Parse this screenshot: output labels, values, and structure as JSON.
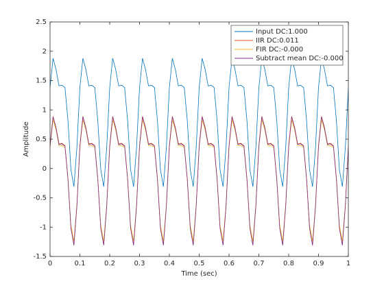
{
  "chart_data": {
    "type": "line",
    "xlabel": "Time (sec)",
    "ylabel": "Amplitude",
    "x": [
      0,
      0.01,
      0.02,
      0.03,
      0.04,
      0.05,
      0.06,
      0.07,
      0.08,
      0.09,
      0.1,
      0.11,
      0.12,
      0.13,
      0.14,
      0.15,
      0.16,
      0.17,
      0.18,
      0.19,
      0.2,
      0.21,
      0.22,
      0.23,
      0.24,
      0.25,
      0.26,
      0.27,
      0.28,
      0.29,
      0.3,
      0.31,
      0.32,
      0.33,
      0.34,
      0.35,
      0.36,
      0.37,
      0.38,
      0.39,
      0.4,
      0.41,
      0.42,
      0.43,
      0.44,
      0.45,
      0.46,
      0.47,
      0.48,
      0.49,
      0.5,
      0.51,
      0.52,
      0.53,
      0.54,
      0.55,
      0.56,
      0.57,
      0.58,
      0.59,
      0.6,
      0.61,
      0.62,
      0.63,
      0.64,
      0.65,
      0.66,
      0.67,
      0.68,
      0.69,
      0.7,
      0.71,
      0.72,
      0.73,
      0.74,
      0.75,
      0.76,
      0.77,
      0.78,
      0.79,
      0.8,
      0.81,
      0.82,
      0.83,
      0.84,
      0.85,
      0.86,
      0.87,
      0.88,
      0.89,
      0.9,
      0.91,
      0.92,
      0.93,
      0.94,
      0.95,
      0.96,
      0.97,
      0.98,
      0.99,
      1
    ],
    "series": [
      {
        "name": "Input DC:1.000",
        "color": "#0072bd",
        "values": [
          1.38,
          1.88,
          1.69,
          1.41,
          1.42,
          1.38,
          0.82,
          -0.02,
          -0.31,
          0.36,
          1.38,
          1.88,
          1.69,
          1.41,
          1.42,
          1.38,
          0.82,
          -0.02,
          -0.31,
          0.36,
          1.38,
          1.88,
          1.69,
          1.41,
          1.42,
          1.38,
          0.82,
          -0.02,
          -0.31,
          0.36,
          1.38,
          1.88,
          1.69,
          1.41,
          1.42,
          1.38,
          0.82,
          -0.02,
          -0.31,
          0.36,
          1.38,
          1.88,
          1.69,
          1.41,
          1.42,
          1.38,
          0.82,
          -0.02,
          -0.31,
          0.36,
          1.38,
          1.88,
          1.69,
          1.41,
          1.42,
          1.38,
          0.82,
          -0.02,
          -0.31,
          0.36,
          1.38,
          1.88,
          1.69,
          1.41,
          1.42,
          1.38,
          0.82,
          -0.02,
          -0.31,
          0.36,
          1.38,
          1.88,
          1.69,
          1.41,
          1.42,
          1.38,
          0.82,
          -0.02,
          -0.31,
          0.36,
          1.38,
          1.88,
          1.69,
          1.41,
          1.42,
          1.38,
          0.82,
          -0.02,
          -0.31,
          0.36,
          1.38,
          1.88,
          1.69,
          1.41,
          1.42,
          1.38,
          0.82,
          -0.02,
          -0.31,
          0.36,
          1.38
        ]
      },
      {
        "name": "IIR DC:0.011",
        "color": "#d95319",
        "values": [
          0.39,
          0.89,
          0.7,
          0.42,
          0.43,
          0.39,
          -0.17,
          -1.01,
          -1.3,
          -0.63,
          0.39,
          0.89,
          0.7,
          0.42,
          0.43,
          0.39,
          -0.17,
          -1.01,
          -1.3,
          -0.63,
          0.39,
          0.89,
          0.7,
          0.42,
          0.43,
          0.39,
          -0.17,
          -1.01,
          -1.3,
          -0.63,
          0.39,
          0.89,
          0.7,
          0.42,
          0.43,
          0.39,
          -0.17,
          -1.01,
          -1.3,
          -0.63,
          0.39,
          0.89,
          0.7,
          0.42,
          0.43,
          0.39,
          -0.17,
          -1.01,
          -1.3,
          -0.63,
          0.39,
          0.89,
          0.7,
          0.42,
          0.43,
          0.39,
          -0.17,
          -1.01,
          -1.3,
          -0.63,
          0.39,
          0.89,
          0.7,
          0.42,
          0.43,
          0.39,
          -0.17,
          -1.01,
          -1.3,
          -0.63,
          0.39,
          0.89,
          0.7,
          0.42,
          0.43,
          0.39,
          -0.17,
          -1.01,
          -1.3,
          -0.63,
          0.39,
          0.89,
          0.7,
          0.42,
          0.43,
          0.39,
          -0.17,
          -1.01,
          -1.3,
          -0.63,
          0.39,
          0.89,
          0.7,
          0.42,
          0.43,
          0.39,
          -0.17,
          -1.01,
          -1.3,
          -0.63,
          0.39
        ]
      },
      {
        "name": "FIR DC:-0.000",
        "color": "#edb120",
        "values": [
          0.36,
          0.83,
          0.66,
          0.39,
          0.39,
          0.36,
          -0.17,
          -0.97,
          -1.24,
          -0.61,
          0.36,
          0.83,
          0.66,
          0.39,
          0.39,
          0.36,
          -0.17,
          -0.97,
          -1.24,
          -0.61,
          0.36,
          0.83,
          0.66,
          0.39,
          0.39,
          0.36,
          -0.17,
          -0.97,
          -1.24,
          -0.61,
          0.36,
          0.83,
          0.66,
          0.39,
          0.39,
          0.36,
          -0.17,
          -0.97,
          -1.24,
          -0.61,
          0.36,
          0.83,
          0.66,
          0.39,
          0.39,
          0.36,
          -0.17,
          -0.97,
          -1.24,
          -0.61,
          0.36,
          0.83,
          0.66,
          0.39,
          0.39,
          0.36,
          -0.17,
          -0.97,
          -1.24,
          -0.61,
          0.36,
          0.83,
          0.66,
          0.39,
          0.39,
          0.36,
          -0.17,
          -0.97,
          -1.24,
          -0.61,
          0.36,
          0.83,
          0.66,
          0.39,
          0.39,
          0.36,
          -0.17,
          -0.97,
          -1.24,
          -0.61,
          0.36,
          0.83,
          0.66,
          0.39,
          0.39,
          0.36,
          -0.17,
          -0.97,
          -1.24,
          -0.61,
          0.36,
          0.83,
          0.66,
          0.39,
          0.39,
          0.36,
          -0.17,
          -0.97,
          -1.24,
          -0.61,
          0.36
        ]
      },
      {
        "name": "Subtract mean DC:-0.000",
        "color": "#7e2f8e",
        "values": [
          0.38,
          0.88,
          0.69,
          0.41,
          0.42,
          0.38,
          -0.18,
          -1.02,
          -1.31,
          -0.64,
          0.38,
          0.88,
          0.69,
          0.41,
          0.42,
          0.38,
          -0.18,
          -1.02,
          -1.31,
          -0.64,
          0.38,
          0.88,
          0.69,
          0.41,
          0.42,
          0.38,
          -0.18,
          -1.02,
          -1.31,
          -0.64,
          0.38,
          0.88,
          0.69,
          0.41,
          0.42,
          0.38,
          -0.18,
          -1.02,
          -1.31,
          -0.64,
          0.38,
          0.88,
          0.69,
          0.41,
          0.42,
          0.38,
          -0.18,
          -1.02,
          -1.31,
          -0.64,
          0.38,
          0.88,
          0.69,
          0.41,
          0.42,
          0.38,
          -0.18,
          -1.02,
          -1.31,
          -0.64,
          0.38,
          0.88,
          0.69,
          0.41,
          0.42,
          0.38,
          -0.18,
          -1.02,
          -1.31,
          -0.64,
          0.38,
          0.88,
          0.69,
          0.41,
          0.42,
          0.38,
          -0.18,
          -1.02,
          -1.31,
          -0.64,
          0.38,
          0.88,
          0.69,
          0.41,
          0.42,
          0.38,
          -0.18,
          -1.02,
          -1.31,
          -0.64,
          0.38,
          0.88,
          0.69,
          0.41,
          0.42,
          0.38,
          -0.18,
          -1.02,
          -1.31,
          -0.64,
          0.38
        ]
      }
    ],
    "xlim": [
      0,
      1
    ],
    "xticks": [
      0,
      0.1,
      0.2,
      0.3,
      0.4,
      0.5,
      0.6,
      0.7,
      0.8,
      0.9,
      1
    ],
    "ylim": [
      -1.5,
      2.5
    ],
    "yticks": [
      -1.5,
      -1,
      -0.5,
      0,
      0.5,
      1,
      1.5,
      2,
      2.5
    ],
    "grid": false,
    "legend": "northeast"
  }
}
